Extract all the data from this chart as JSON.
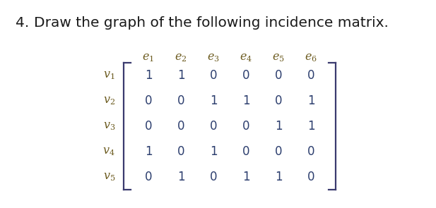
{
  "title_num": "4.",
  "title_text": "   Draw the graph of the following incidence matrix.",
  "col_labels": [
    "$e_1$",
    "$e_2$",
    "$e_3$",
    "$e_4$",
    "$e_5$",
    "$e_6$"
  ],
  "row_labels": [
    "$v_1$",
    "$v_2$",
    "$v_3$",
    "$v_4$",
    "$v_5$"
  ],
  "matrix": [
    [
      1,
      1,
      0,
      0,
      0,
      0
    ],
    [
      0,
      0,
      1,
      1,
      0,
      1
    ],
    [
      0,
      0,
      0,
      0,
      1,
      1
    ],
    [
      1,
      0,
      1,
      0,
      0,
      0
    ],
    [
      0,
      1,
      0,
      1,
      1,
      0
    ]
  ],
  "bg_color": "#ffffff",
  "matrix_color": "#2c3e6e",
  "label_color": "#6b5a1e",
  "title_color": "#1a1a1a",
  "title_fontsize": 14.5,
  "matrix_fontsize": 12,
  "label_fontsize": 11.5,
  "bracket_color": "#3a3a6e",
  "bracket_lw": 1.6
}
